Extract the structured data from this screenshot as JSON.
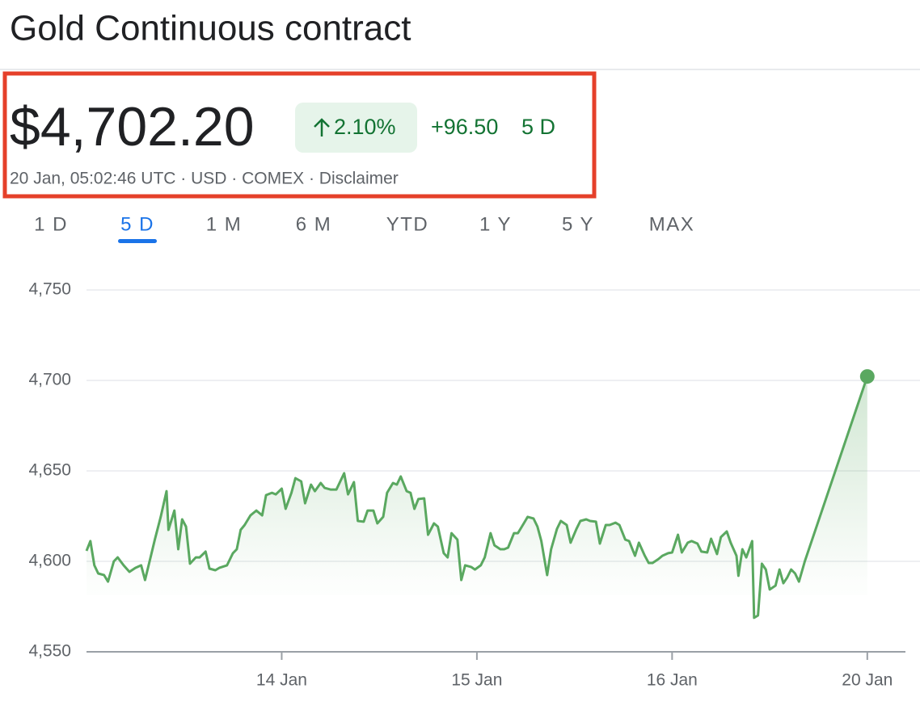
{
  "header": {
    "title": "Gold Continuous contract",
    "price": "$4,702.20",
    "change_percent": "2.10%",
    "change": "+96.50",
    "period": "5 D",
    "meta": "20 Jan, 05:02:46 UTC · USD · COMEX · Disclaimer"
  },
  "tabs": [
    "1 D",
    "5 D",
    "1 M",
    "6 M",
    "YTD",
    "1 Y",
    "5 Y",
    "MAX"
  ],
  "active_tab": 1,
  "chart_data": {
    "type": "line",
    "color": "#5aa860",
    "grid": true,
    "xlim": [
      0,
      4.27
    ],
    "xticks": [
      {
        "value": 1,
        "label": "14 Jan"
      },
      {
        "value": 2,
        "label": "15 Jan"
      },
      {
        "value": 3,
        "label": "16 Jan"
      },
      {
        "value": 4,
        "label": "20 Jan"
      }
    ],
    "ylim": [
      4550,
      4750
    ],
    "yticks": [
      {
        "value": 4550,
        "label": "4,550"
      },
      {
        "value": 4600,
        "label": "4,600"
      },
      {
        "value": 4650,
        "label": "4,650"
      },
      {
        "value": 4700,
        "label": "4,700"
      },
      {
        "value": 4750,
        "label": "4,750"
      }
    ],
    "x": [
      0.0,
      0.02,
      0.04,
      0.06,
      0.09,
      0.11,
      0.14,
      0.16,
      0.19,
      0.22,
      0.25,
      0.28,
      0.3,
      0.33,
      0.35,
      0.38,
      0.41,
      0.42,
      0.45,
      0.47,
      0.49,
      0.51,
      0.53,
      0.56,
      0.58,
      0.61,
      0.63,
      0.66,
      0.68,
      0.72,
      0.75,
      0.77,
      0.79,
      0.81,
      0.84,
      0.87,
      0.9,
      0.92,
      0.95,
      0.97,
      1.0,
      1.02,
      1.05,
      1.07,
      1.1,
      1.12,
      1.15,
      1.17,
      1.2,
      1.22,
      1.25,
      1.28,
      1.3,
      1.32,
      1.34,
      1.37,
      1.39,
      1.42,
      1.44,
      1.47,
      1.49,
      1.52,
      1.54,
      1.57,
      1.59,
      1.61,
      1.64,
      1.66,
      1.68,
      1.7,
      1.73,
      1.75,
      1.78,
      1.8,
      1.83,
      1.85,
      1.87,
      1.9,
      1.92,
      1.94,
      1.97,
      1.99,
      2.02,
      2.04,
      2.07,
      2.09,
      2.12,
      2.14,
      2.16,
      2.19,
      2.21,
      2.24,
      2.26,
      2.29,
      2.31,
      2.33,
      2.36,
      2.38,
      2.41,
      2.43,
      2.46,
      2.48,
      2.51,
      2.53,
      2.56,
      2.58,
      2.61,
      2.63,
      2.66,
      2.68,
      2.71,
      2.73,
      2.76,
      2.78,
      2.81,
      2.83,
      2.86,
      2.88,
      2.9,
      2.93,
      2.95,
      2.98,
      3.0,
      3.03,
      3.05,
      3.08,
      3.1,
      3.13,
      3.15,
      3.18,
      3.2,
      3.23,
      3.25,
      3.28,
      3.3,
      3.33,
      3.34,
      3.36,
      3.38,
      3.41,
      3.42,
      3.44,
      3.46,
      3.48,
      3.5,
      3.53,
      3.55,
      3.57,
      3.59,
      3.61,
      3.63,
      3.65,
      3.68,
      4.0
    ],
    "values": [
      4605.8,
      4611.2,
      4597.8,
      4593.3,
      4592.4,
      4588.8,
      4600,
      4602.2,
      4597.8,
      4594.2,
      4596.4,
      4597.8,
      4589.7,
      4603.1,
      4612,
      4624.6,
      4638.8,
      4617.4,
      4628.1,
      4606.7,
      4623.2,
      4619.2,
      4598.7,
      4602.2,
      4602.2,
      4605.4,
      4596,
      4595.1,
      4596.4,
      4597.8,
      4604.5,
      4606.7,
      4617.4,
      4620.1,
      4625.4,
      4628.1,
      4625.4,
      4636.6,
      4637.9,
      4637,
      4640.2,
      4629,
      4637.9,
      4646,
      4644.2,
      4632.1,
      4642.4,
      4638.8,
      4643.3,
      4640.6,
      4639.7,
      4639.7,
      4644.2,
      4648.7,
      4637,
      4643.8,
      4622.3,
      4621.9,
      4628.1,
      4628.1,
      4621,
      4624.6,
      4637.9,
      4643.3,
      4642.4,
      4646.9,
      4638.8,
      4637.9,
      4629,
      4634.4,
      4634.8,
      4614.7,
      4621,
      4619.2,
      4604.5,
      4602.2,
      4615.6,
      4612,
      4589.7,
      4597.8,
      4596.9,
      4595.5,
      4597.8,
      4602.2,
      4615.6,
      4608.9,
      4606.7,
      4606.7,
      4607.6,
      4615.6,
      4615.6,
      4621,
      4624.6,
      4623.7,
      4619.2,
      4611.2,
      4592.4,
      4606.7,
      4617.9,
      4622.3,
      4620.1,
      4610.3,
      4617.9,
      4622.3,
      4623.2,
      4622.3,
      4621.9,
      4609.8,
      4620.1,
      4620.1,
      4621.4,
      4620.1,
      4612,
      4611.2,
      4603.1,
      4610.3,
      4603.1,
      4599.1,
      4599.1,
      4601.3,
      4603.1,
      4604.5,
      4604.9,
      4614.7,
      4604.9,
      4610.3,
      4611.2,
      4609.8,
      4605.4,
      4604.9,
      4612.5,
      4604,
      4613.4,
      4616.5,
      4610.3,
      4603.1,
      4592,
      4606.7,
      4602.2,
      4611.2,
      4568.8,
      4570.1,
      4598.7,
      4595.5,
      4584.4,
      4586.6,
      4595.5,
      4587.9,
      4591.1,
      4595.5,
      4593.3,
      4588.8,
      4600,
      4702.2
    ]
  }
}
